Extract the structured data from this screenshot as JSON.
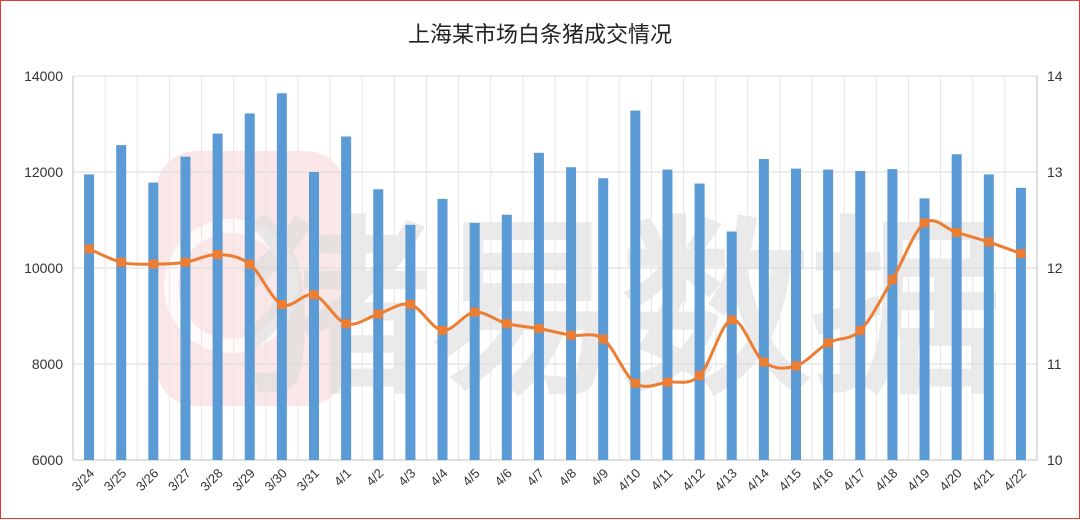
{
  "chart_data": {
    "type": "bar",
    "title": "上海某市场白条猪成交情况",
    "categories": [
      "3/24",
      "3/25",
      "3/26",
      "3/27",
      "3/28",
      "3/29",
      "3/30",
      "3/31",
      "4/1",
      "4/2",
      "4/3",
      "4/4",
      "4/5",
      "4/6",
      "4/7",
      "4/8",
      "4/9",
      "4/10",
      "4/11",
      "4/12",
      "4/13",
      "4/14",
      "4/15",
      "4/16",
      "4/17",
      "4/18",
      "4/19",
      "4/20",
      "4/21",
      "4/22"
    ],
    "series": [
      {
        "type": "bar",
        "axis": "left",
        "color": "#5b9bd5",
        "values": [
          11950,
          12560,
          11780,
          12320,
          12800,
          13220,
          13640,
          12000,
          12740,
          11640,
          10900,
          11440,
          10940,
          11110,
          12400,
          12100,
          11870,
          13280,
          12050,
          11760,
          10760,
          12270,
          12070,
          12050,
          12020,
          12060,
          11450,
          12370,
          11950,
          11670
        ]
      },
      {
        "type": "line",
        "axis": "right",
        "color": "#ed7d31",
        "values": [
          12.2,
          12.06,
          12.04,
          12.06,
          12.14,
          12.04,
          11.62,
          11.72,
          11.42,
          11.52,
          11.62,
          11.35,
          11.54,
          11.42,
          11.37,
          11.3,
          11.26,
          10.8,
          10.81,
          10.88,
          11.46,
          11.02,
          10.98,
          11.22,
          11.35,
          11.88,
          12.47,
          12.37,
          12.27,
          12.15
        ]
      }
    ],
    "y_left": {
      "min": 6000,
      "max": 14000,
      "ticks": [
        "6000",
        "8000",
        "10000",
        "12000",
        "14000"
      ]
    },
    "y_right": {
      "min": 10,
      "max": 14,
      "ticks": [
        "10",
        "11",
        "12",
        "13",
        "14"
      ]
    },
    "grid": true,
    "watermark": "猪易数据"
  }
}
